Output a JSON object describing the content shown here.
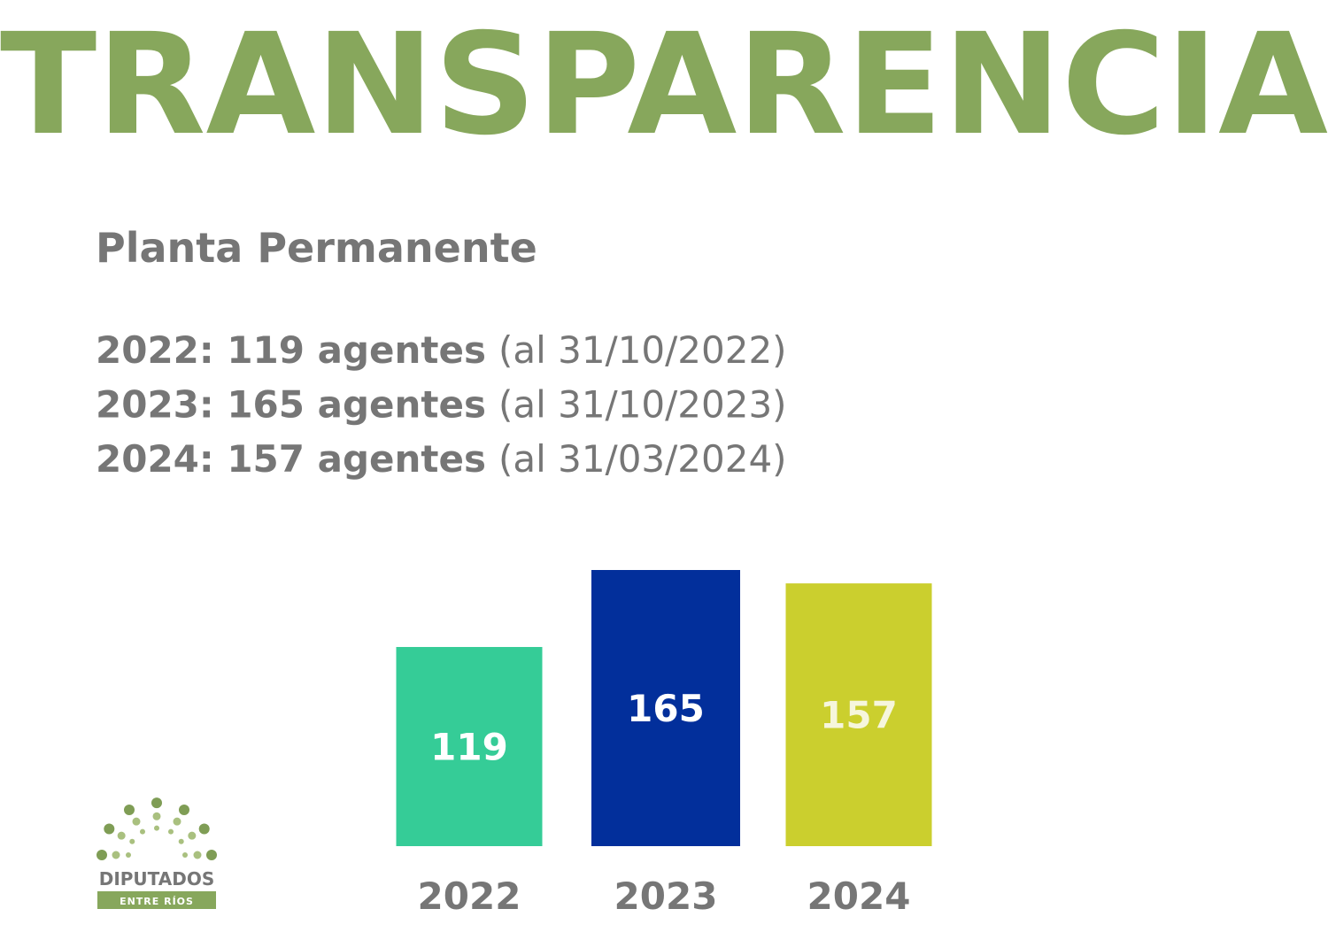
{
  "header": {
    "title": "TRANSPARENCIA",
    "subtitle": "Planta Permanente"
  },
  "summary": [
    {
      "label": "2022: 119 agentes",
      "note": "(al 31/10/2022)"
    },
    {
      "label": "2023: 165 agentes",
      "note": "(al 31/10/2023)"
    },
    {
      "label": "2024: 157 agentes",
      "note": "(al 31/03/2024)"
    }
  ],
  "chart_data": {
    "type": "bar",
    "categories": [
      "2022",
      "2023",
      "2024"
    ],
    "values": [
      119,
      165,
      157
    ],
    "colors": [
      "#35cc97",
      "#022f9b",
      "#cbcf2e"
    ]
  },
  "logo": {
    "name": "DIPUTADOS",
    "tagline": "ENTRE RÍOS"
  }
}
